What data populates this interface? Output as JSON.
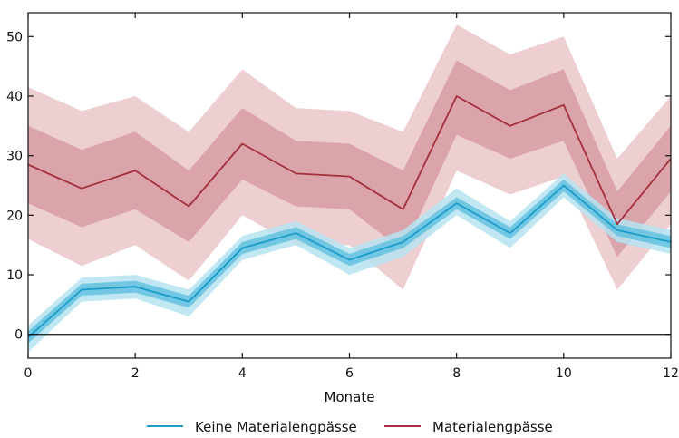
{
  "chart_data": {
    "type": "line",
    "xlabel": "Monate",
    "ylabel": "",
    "xlim": [
      0,
      12
    ],
    "ylim": [
      -4,
      54
    ],
    "xticks": [
      0,
      2,
      4,
      6,
      8,
      10,
      12
    ],
    "yticks": [
      0,
      10,
      20,
      30,
      40,
      50
    ],
    "grid": false,
    "zero_line": true,
    "legend_position": "bottom",
    "x": [
      0,
      1,
      2,
      3,
      4,
      5,
      6,
      7,
      8,
      9,
      10,
      11,
      12
    ],
    "series": [
      {
        "name": "Keine Materialengpässe",
        "color": "#1a9bc9",
        "band_inner_color": "#5ec0de",
        "band_outer_color": "#b6e3f1",
        "values": [
          -0.5,
          7.5,
          8,
          5.5,
          14.5,
          17,
          12.5,
          15.5,
          22,
          17,
          25,
          17.5,
          15.5
        ],
        "inner_band": {
          "low": [
            -1.5,
            6.5,
            7,
            4.5,
            13.5,
            16,
            11.5,
            14.5,
            21,
            16,
            24,
            16.5,
            14.5
          ],
          "high": [
            0.5,
            8.5,
            9,
            6.5,
            15.5,
            18,
            13.5,
            16.5,
            23,
            18,
            26,
            18.5,
            16.5
          ]
        },
        "outer_band": {
          "low": [
            -3,
            5.5,
            6,
            3,
            12.5,
            15,
            10,
            13,
            20,
            14.5,
            23,
            15.5,
            13.5
          ],
          "high": [
            1.5,
            9.5,
            10,
            7.5,
            16.5,
            19,
            14.5,
            17.5,
            24.5,
            19,
            27,
            19.5,
            17.5
          ]
        }
      },
      {
        "name": "Materialengpässe",
        "color": "#a3303a",
        "band_inner_color": "#d4949c",
        "band_outer_color": "#e8c3c7",
        "values": [
          28.5,
          24.5,
          27.5,
          21.5,
          32,
          27,
          26.5,
          21,
          40,
          35,
          38.5,
          18.5,
          29.5
        ],
        "inner_band": {
          "low": [
            22,
            18,
            21,
            15.5,
            26,
            21.5,
            21,
            14,
            33.5,
            29.5,
            32.5,
            13,
            24
          ],
          "high": [
            35,
            31,
            34,
            27.5,
            38,
            32.5,
            32,
            27.5,
            46,
            41,
            44.5,
            24,
            35
          ]
        },
        "outer_band": {
          "low": [
            16,
            11.5,
            15,
            9,
            20,
            15,
            15,
            7.5,
            27.5,
            23.5,
            26.5,
            7.5,
            18.5
          ],
          "high": [
            41.5,
            37.5,
            40,
            34,
            44.5,
            38,
            37.5,
            34,
            52,
            47,
            50,
            29.5,
            40
          ]
        }
      }
    ]
  }
}
